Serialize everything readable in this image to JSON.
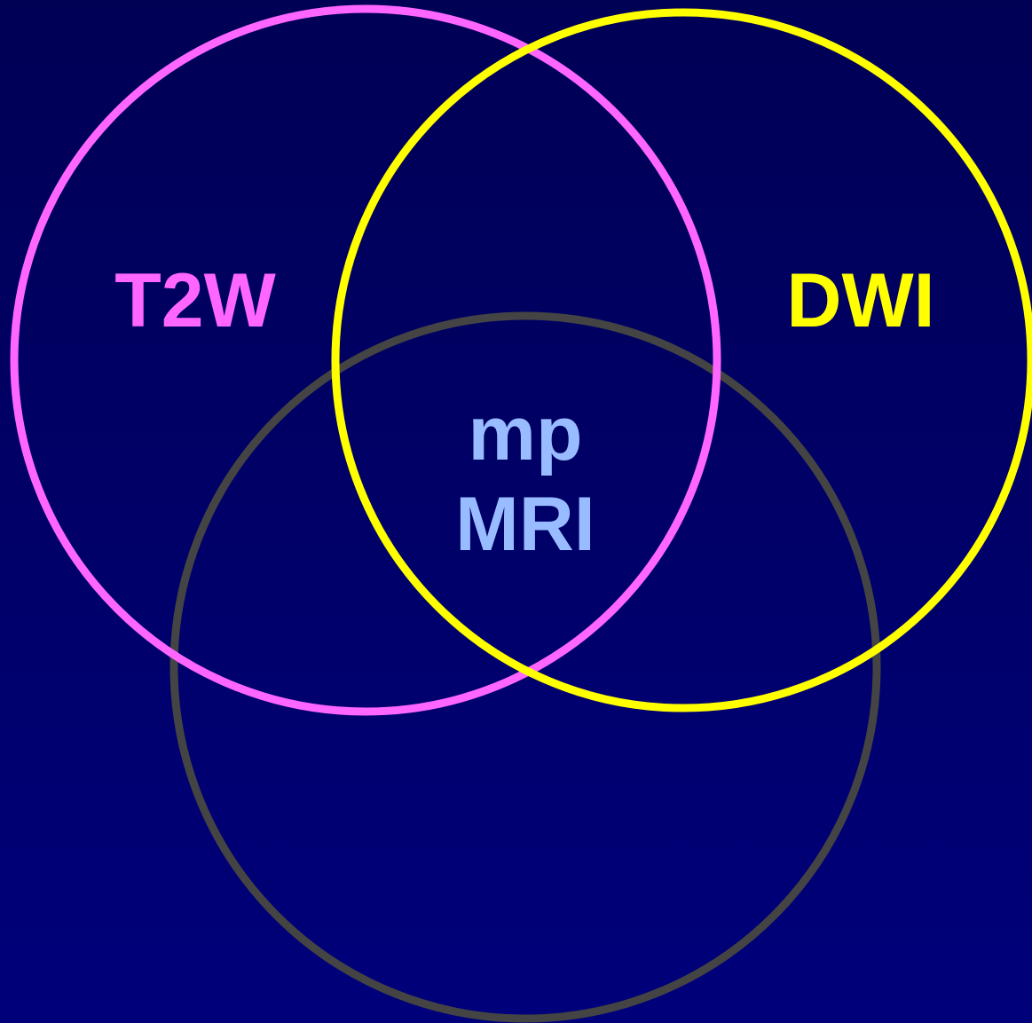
{
  "diagram": {
    "circles": [
      {
        "label": "T2W"
      },
      {
        "label": "DWI"
      },
      {
        "label": null
      }
    ],
    "center_label": [
      "mp",
      "MRI"
    ]
  }
}
